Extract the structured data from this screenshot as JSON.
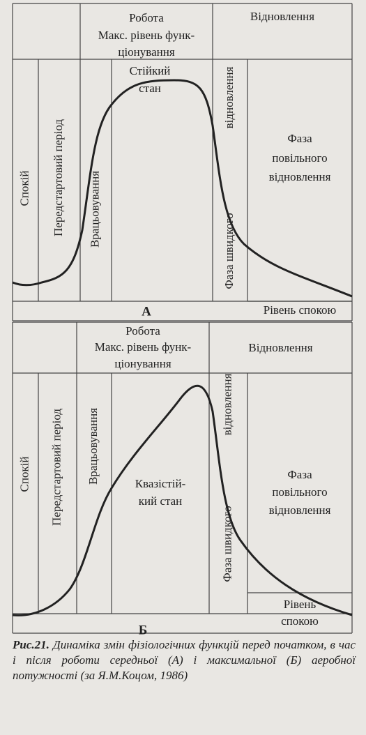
{
  "panels": [
    {
      "work_label": "Робота",
      "max_level_lines": [
        "Макс. рівень функ-",
        "ціонування"
      ],
      "recovery_label": "Відновлення",
      "rest_label": "Спокій",
      "prestart_label": "Передстартовий період",
      "warmup_label": "Врацьовування",
      "state_lines": [
        "Стійкий",
        "стан"
      ],
      "fast_phase_lines": [
        "Фаза швидкого",
        "відновлення"
      ],
      "slow_phase_lines": [
        "Фаза",
        "повільного",
        "відновлення"
      ],
      "baseline_lines": [
        "Рівень спокою"
      ],
      "letter": "А"
    },
    {
      "work_label": "Робота",
      "max_level_lines": [
        "Макс. рівень функ-",
        "ціонування"
      ],
      "recovery_label": "Відновлення",
      "rest_label": "Спокій",
      "prestart_label": "Передстартовий період",
      "warmup_label": "Врацьовування",
      "state_lines": [
        "Квазістій-",
        "кий стан"
      ],
      "fast_phase_lines": [
        "Фаза швидкого",
        "відновлення"
      ],
      "slow_phase_lines": [
        "Фаза",
        "повільного",
        "відновлення"
      ],
      "baseline_lines": [
        "Рівень",
        "спокою"
      ],
      "letter": "Б"
    }
  ],
  "caption": {
    "figure_label": "Рис.21.",
    "text": "Динаміка змін фізіологічних функцій перед початком, в час і після роботи середньої (А) і максимальної (Б) аеробної потужності (за Я.М.Коцом, 1986)"
  }
}
